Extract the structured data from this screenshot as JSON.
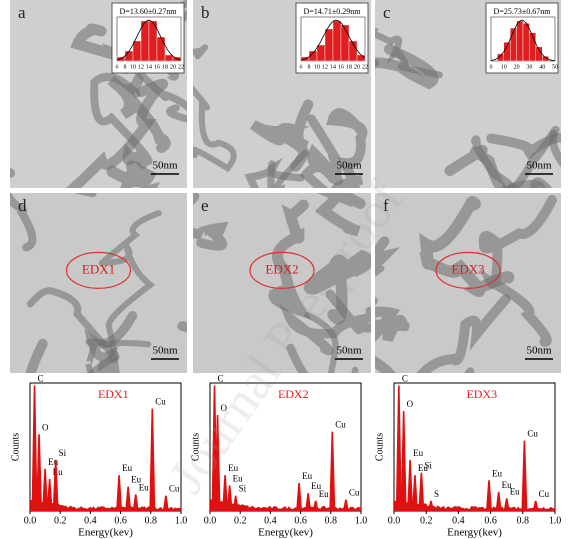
{
  "panels": [
    {
      "label": "a",
      "scale_bar": "50nm",
      "inset": {
        "title": "D=13.60±0.27nm",
        "xlim": [
          6,
          22
        ],
        "bins": [
          6,
          8,
          10,
          12,
          14,
          16,
          18,
          20,
          22
        ],
        "values": [
          2,
          5,
          10,
          20,
          20,
          12,
          3,
          2
        ],
        "xticks": [
          6,
          8,
          10,
          12,
          14,
          16,
          18,
          20,
          22
        ]
      }
    },
    {
      "label": "b",
      "scale_bar": "50nm",
      "inset": {
        "title": "D=14.71±0.29nm",
        "xlim": [
          6,
          22
        ],
        "bins": [
          6,
          8,
          10,
          12,
          14,
          16,
          18,
          20,
          22
        ],
        "values": [
          2,
          5,
          8,
          16,
          20,
          18,
          10,
          3
        ],
        "xticks": [
          6,
          8,
          10,
          12,
          14,
          16,
          18,
          20,
          22
        ]
      }
    },
    {
      "label": "c",
      "scale_bar": "50nm",
      "inset": {
        "title": "D=25.73±0.67nm",
        "xlim": [
          0,
          50
        ],
        "bins": [
          5,
          10,
          15,
          20,
          25,
          30,
          35,
          40,
          45
        ],
        "values": [
          3,
          8,
          14,
          17,
          16,
          12,
          6,
          2
        ],
        "xticks": [
          0,
          10,
          20,
          30,
          40,
          50
        ]
      }
    },
    {
      "label": "d",
      "scale_bar": "50nm",
      "region": "EDX1"
    },
    {
      "label": "e",
      "scale_bar": "50nm",
      "region": "EDX2"
    },
    {
      "label": "f",
      "scale_bar": "50nm",
      "region": "EDX3"
    }
  ],
  "spectra": [
    {
      "title": "EDX1",
      "ylabel": "Counts",
      "xlabel": "Energy(kev)",
      "xlim": [
        0,
        1
      ],
      "xticks": [
        {
          "value": 0,
          "label": "0.0"
        },
        {
          "value": 0.2,
          "label": "0.2"
        },
        {
          "value": 0.4,
          "label": "0.4"
        },
        {
          "value": 0.6,
          "label": "0.6"
        },
        {
          "value": 0.8,
          "label": "0.8"
        },
        {
          "value": 1,
          "label": "1.0"
        }
      ],
      "peaks": [
        {
          "label": "C",
          "energy": 0.03,
          "height": 98
        },
        {
          "label": "O",
          "energy": 0.06,
          "height": 60
        },
        {
          "label": "Eu",
          "energy": 0.1,
          "height": 33
        },
        {
          "label": "Eu",
          "energy": 0.13,
          "height": 25
        },
        {
          "label": "Si",
          "energy": 0.17,
          "height": 40
        },
        {
          "label": "Eu",
          "energy": 0.59,
          "height": 28
        },
        {
          "label": "Eu",
          "energy": 0.65,
          "height": 19
        },
        {
          "label": "Eu",
          "energy": 0.7,
          "height": 13
        },
        {
          "label": "Cu",
          "energy": 0.81,
          "height": 80
        },
        {
          "label": "Cu",
          "energy": 0.9,
          "height": 12
        }
      ]
    },
    {
      "title": "EDX2",
      "ylabel": "Counts",
      "xlabel": "Energy(kev)",
      "xlim": [
        0,
        1
      ],
      "xticks": [
        {
          "value": 0,
          "label": "0.0"
        },
        {
          "value": 0.2,
          "label": "0.2"
        },
        {
          "value": 0.4,
          "label": "0.4"
        },
        {
          "value": 0.6,
          "label": "0.6"
        },
        {
          "value": 0.8,
          "label": "0.8"
        },
        {
          "value": 1,
          "label": "1.0"
        }
      ],
      "peaks": [
        {
          "label": "C",
          "energy": 0.03,
          "height": 98
        },
        {
          "label": "O",
          "energy": 0.05,
          "height": 75
        },
        {
          "label": "Eu",
          "energy": 0.1,
          "height": 28
        },
        {
          "label": "Eu",
          "energy": 0.13,
          "height": 20
        },
        {
          "label": "Si",
          "energy": 0.17,
          "height": 12
        },
        {
          "label": "Eu",
          "energy": 0.59,
          "height": 22
        },
        {
          "label": "Eu",
          "energy": 0.65,
          "height": 14
        },
        {
          "label": "Eu",
          "energy": 0.7,
          "height": 8
        },
        {
          "label": "Cu",
          "energy": 0.81,
          "height": 62
        },
        {
          "label": "Cu",
          "energy": 0.9,
          "height": 9
        }
      ]
    },
    {
      "title": "EDX3",
      "ylabel": "Counts",
      "xlabel": "Energy(kev)",
      "xlim": [
        0,
        1
      ],
      "xticks": [
        {
          "value": 0,
          "label": "0.0"
        },
        {
          "value": 0.2,
          "label": "0.2"
        },
        {
          "value": 0.4,
          "label": "0.4"
        },
        {
          "value": 0.6,
          "label": "0.6"
        },
        {
          "value": 0.8,
          "label": "0.8"
        },
        {
          "value": 1,
          "label": "1.0"
        }
      ],
      "peaks": [
        {
          "label": "C",
          "energy": 0.03,
          "height": 98
        },
        {
          "label": "O",
          "energy": 0.06,
          "height": 78
        },
        {
          "label": "Eu",
          "energy": 0.1,
          "height": 40
        },
        {
          "label": "Eu",
          "energy": 0.13,
          "height": 28
        },
        {
          "label": "Si",
          "energy": 0.17,
          "height": 30
        },
        {
          "label": "S",
          "energy": 0.23,
          "height": 8
        },
        {
          "label": "Eu",
          "energy": 0.59,
          "height": 24
        },
        {
          "label": "Eu",
          "energy": 0.65,
          "height": 15
        },
        {
          "label": "Eu",
          "energy": 0.7,
          "height": 10
        },
        {
          "label": "Cu",
          "energy": 0.81,
          "height": 55
        },
        {
          "label": "Cu",
          "energy": 0.88,
          "height": 8
        }
      ]
    }
  ],
  "watermark": "Journal Pre-proof"
}
